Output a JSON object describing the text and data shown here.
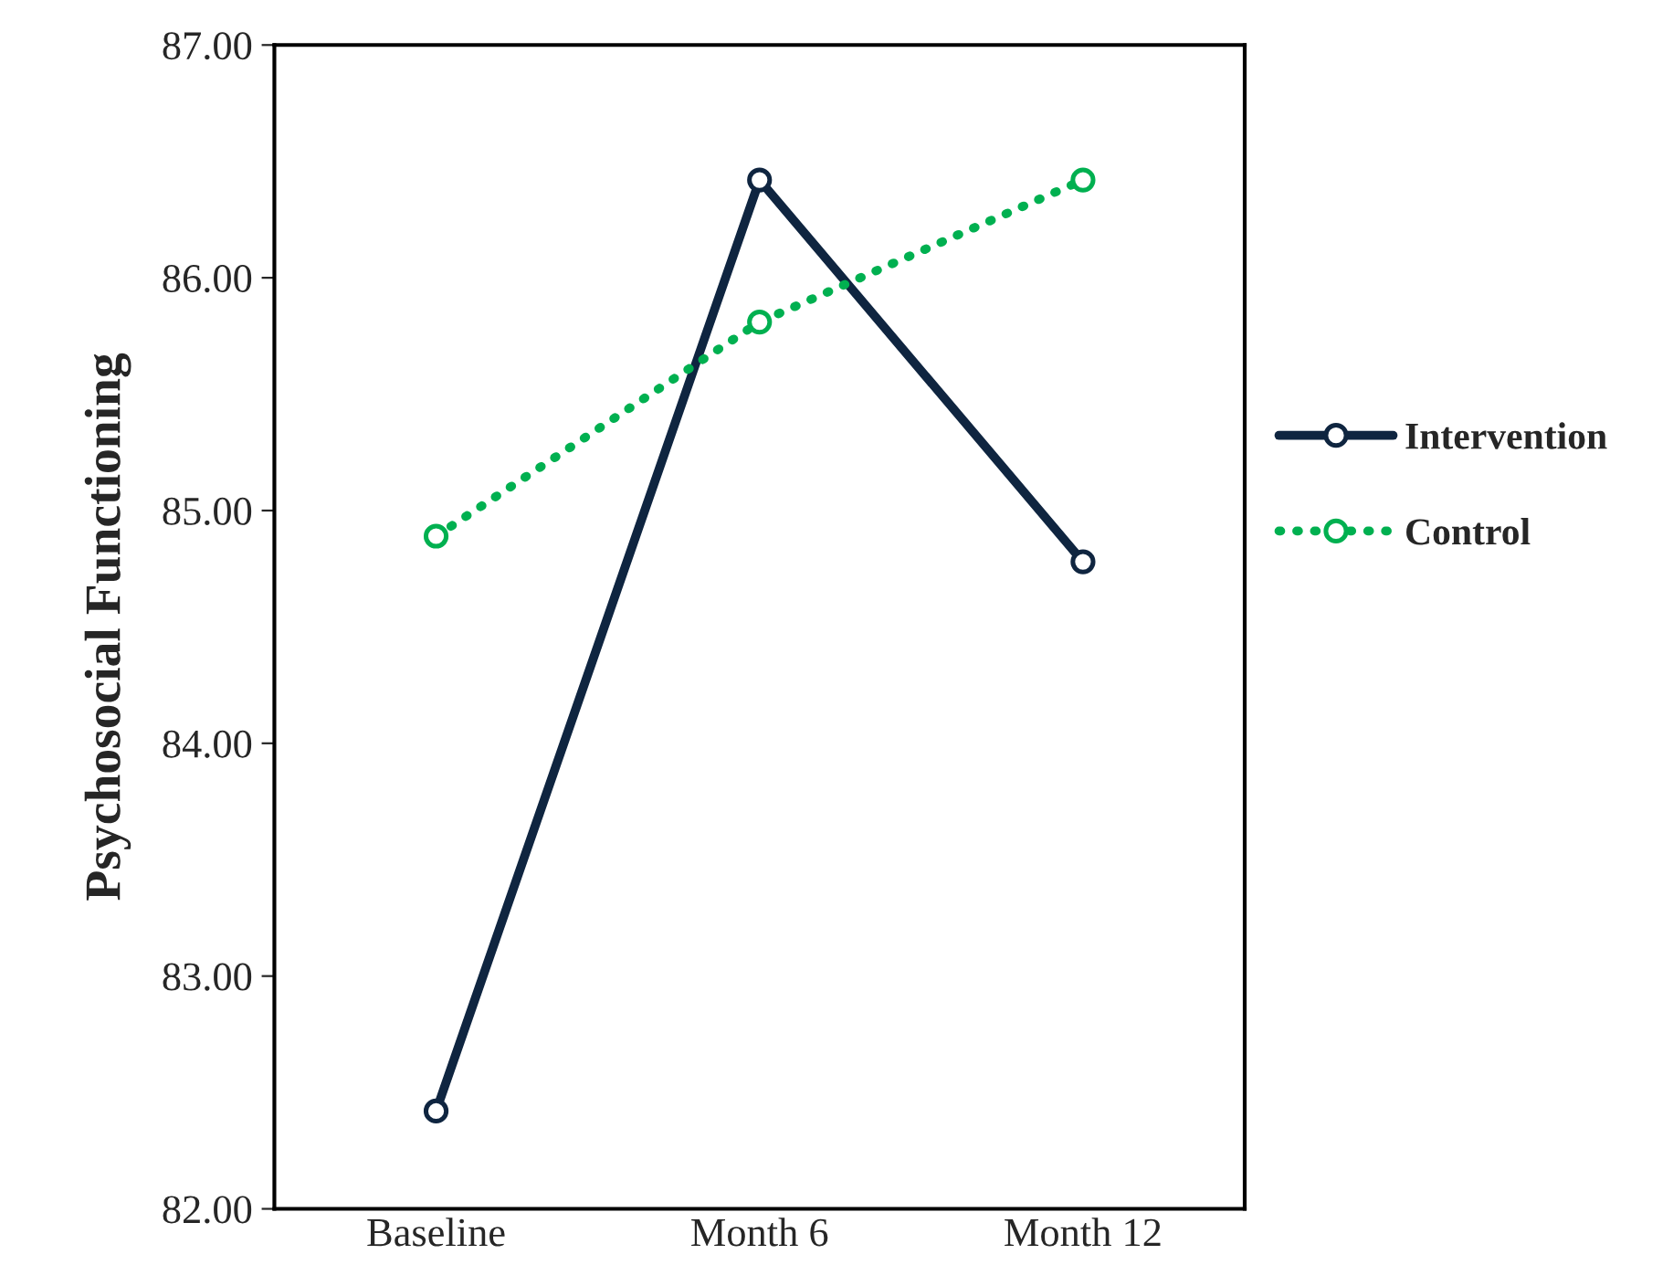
{
  "chart_data": {
    "type": "line",
    "ylabel": "Psychosocial Functioning",
    "categories": [
      "Baseline",
      "Month 6",
      "Month 12"
    ],
    "series": [
      {
        "name": "Intervention",
        "color": "#0f2540",
        "values": [
          82.42,
          86.42,
          84.78
        ],
        "line_style": "solid"
      },
      {
        "name": "Control",
        "color": "#00b050",
        "values": [
          84.89,
          85.81,
          86.42
        ],
        "line_style": "dotted"
      }
    ],
    "ylim": [
      82,
      87
    ],
    "yticks": [
      {
        "value": 82,
        "label": "82.00"
      },
      {
        "value": 83,
        "label": "83.00"
      },
      {
        "value": 84,
        "label": "84.00"
      },
      {
        "value": 85,
        "label": "85.00"
      },
      {
        "value": 86,
        "label": "86.00"
      },
      {
        "value": 87,
        "label": "87.00"
      }
    ],
    "marker": "circle",
    "grid": false,
    "legend": "right"
  }
}
